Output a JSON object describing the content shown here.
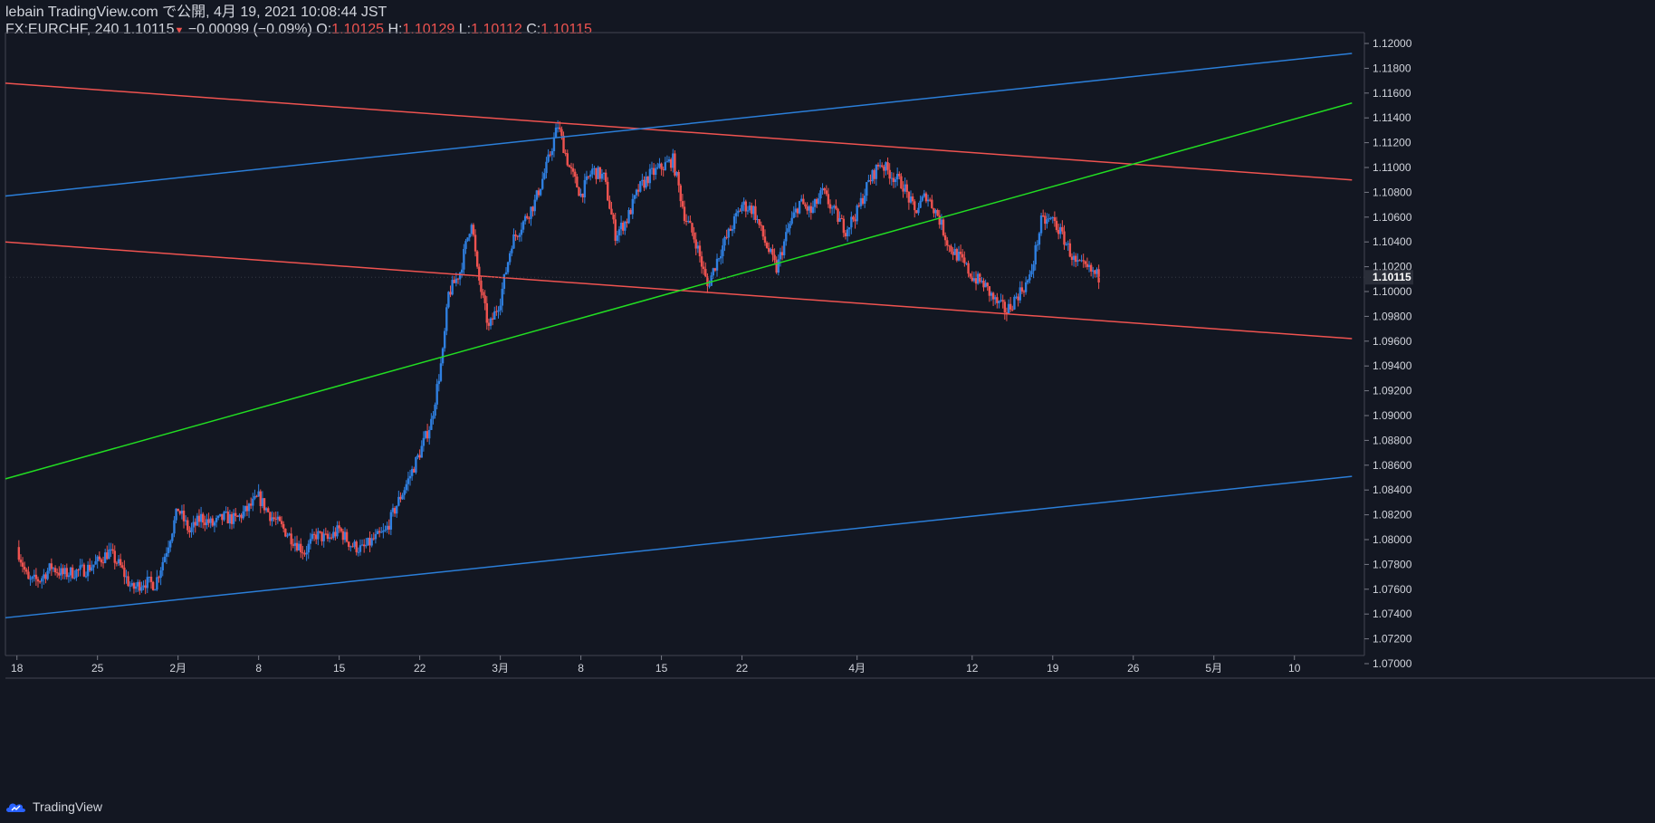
{
  "header": {
    "published": "lebain TradingView.com で公開, 4月 19, 2021 10:08:44 JST",
    "symbol": "FX:EURCHF, 240",
    "last": "1.10115",
    "change_arrow": "▼",
    "change": "−0.00099 (−0.09%)",
    "o_label": "O:",
    "o_value": "1.10125",
    "h_label": "H:",
    "h_value": "1.10129",
    "l_label": "L:",
    "l_value": "1.10112",
    "c_label": "C:",
    "c_value": "1.10115"
  },
  "footer": {
    "brand": "TradingView"
  },
  "colors": {
    "background": "#131722",
    "up": "#2f7fe0",
    "down": "#ef5350",
    "green_line": "#22dd22",
    "blue_line": "#2b7ed8",
    "red_line": "#ef5350",
    "axis_text": "#d1d4dc"
  },
  "chart_data": {
    "type": "candlestick",
    "title": "FX:EURCHF, 240",
    "ylim": [
      1.07,
      1.12
    ],
    "y_ticks": [
      1.07,
      1.072,
      1.074,
      1.076,
      1.078,
      1.08,
      1.082,
      1.084,
      1.086,
      1.088,
      1.09,
      1.092,
      1.094,
      1.096,
      1.098,
      1.1,
      1.102,
      1.104,
      1.106,
      1.108,
      1.11,
      1.112,
      1.114,
      1.116,
      1.118,
      1.12
    ],
    "y_tick_labels": [
      "1.07000",
      "1.07200",
      "1.07400",
      "1.07600",
      "1.07800",
      "1.08000",
      "1.08200",
      "1.08400",
      "1.08600",
      "1.08800",
      "1.09000",
      "1.09200",
      "1.09400",
      "1.09600",
      "1.09800",
      "1.10000",
      "1.10200",
      "1.10400",
      "1.10600",
      "1.10800",
      "1.11000",
      "1.11200",
      "1.11400",
      "1.11600",
      "1.11800",
      "1.12000"
    ],
    "current_price": 1.10115,
    "current_price_label": "1.10115",
    "x_axis": {
      "unit": "day",
      "labels": [
        {
          "text": "18",
          "x": 0
        },
        {
          "text": "25",
          "x": 7
        },
        {
          "text": "2月",
          "x": 14
        },
        {
          "text": "8",
          "x": 21
        },
        {
          "text": "15",
          "x": 28
        },
        {
          "text": "22",
          "x": 35
        },
        {
          "text": "3月",
          "x": 42
        },
        {
          "text": "8",
          "x": 49
        },
        {
          "text": "15",
          "x": 56
        },
        {
          "text": "22",
          "x": 63
        },
        {
          "text": "4月",
          "x": 73
        },
        {
          "text": "12",
          "x": 83
        },
        {
          "text": "19",
          "x": 90
        },
        {
          "text": "26",
          "x": 97
        },
        {
          "text": "5月",
          "x": 104
        },
        {
          "text": "10",
          "x": 111
        }
      ],
      "xlim": [
        -1,
        117
      ]
    },
    "price_path": [
      [
        0,
        1.0794
      ],
      [
        1,
        1.0766
      ],
      [
        2,
        1.0768
      ],
      [
        3,
        1.0778
      ],
      [
        4,
        1.0772
      ],
      [
        5,
        1.0774
      ],
      [
        6,
        1.0776
      ],
      [
        7,
        1.0782
      ],
      [
        8,
        1.079
      ],
      [
        9,
        1.0778
      ],
      [
        10,
        1.076
      ],
      [
        11,
        1.0766
      ],
      [
        12,
        1.0764
      ],
      [
        13,
        1.0792
      ],
      [
        14,
        1.0825
      ],
      [
        15,
        1.0806
      ],
      [
        16,
        1.0818
      ],
      [
        17,
        1.0812
      ],
      [
        18,
        1.0818
      ],
      [
        19,
        1.0816
      ],
      [
        20,
        1.0824
      ],
      [
        21,
        1.0834
      ],
      [
        22,
        1.082
      ],
      [
        23,
        1.081
      ],
      [
        24,
        1.08
      ],
      [
        25,
        1.079
      ],
      [
        26,
        1.0804
      ],
      [
        27,
        1.08
      ],
      [
        28,
        1.0808
      ],
      [
        29,
        1.0796
      ],
      [
        30,
        1.0792
      ],
      [
        31,
        1.08
      ],
      [
        32,
        1.0806
      ],
      [
        33,
        1.0828
      ],
      [
        34,
        1.0848
      ],
      [
        35,
        1.087
      ],
      [
        36,
        1.0895
      ],
      [
        37,
        1.095
      ],
      [
        37.5,
        1.0998
      ],
      [
        38.5,
        1.1016
      ],
      [
        39.5,
        1.1058
      ],
      [
        40,
        1.1016
      ],
      [
        41,
        1.097
      ],
      [
        42,
        1.0994
      ],
      [
        43,
        1.104
      ],
      [
        45,
        1.1072
      ],
      [
        46,
        1.11
      ],
      [
        47,
        1.1134
      ],
      [
        48,
        1.11
      ],
      [
        49,
        1.1078
      ],
      [
        50,
        1.1098
      ],
      [
        51,
        1.1092
      ],
      [
        52,
        1.1046
      ],
      [
        53,
        1.1058
      ],
      [
        54,
        1.1082
      ],
      [
        55,
        1.1094
      ],
      [
        56,
        1.11
      ],
      [
        57,
        1.1106
      ],
      [
        58,
        1.1062
      ],
      [
        59,
        1.104
      ],
      [
        60,
        1.1004
      ],
      [
        61,
        1.103
      ],
      [
        62,
        1.105
      ],
      [
        63,
        1.107
      ],
      [
        64,
        1.1066
      ],
      [
        65,
        1.104
      ],
      [
        66,
        1.1018
      ],
      [
        67,
        1.105
      ],
      [
        68,
        1.1072
      ],
      [
        69,
        1.1064
      ],
      [
        70,
        1.108
      ],
      [
        71,
        1.1064
      ],
      [
        72,
        1.105
      ],
      [
        73,
        1.1064
      ],
      [
        74,
        1.1088
      ],
      [
        75,
        1.1104
      ],
      [
        76,
        1.1094
      ],
      [
        77,
        1.1086
      ],
      [
        78,
        1.1064
      ],
      [
        79,
        1.1078
      ],
      [
        80,
        1.1062
      ],
      [
        81,
        1.1036
      ],
      [
        82,
        1.1026
      ],
      [
        83,
        1.1012
      ],
      [
        84,
        1.1006
      ],
      [
        85,
        1.0992
      ],
      [
        86,
        1.0984
      ],
      [
        87,
        1.0998
      ],
      [
        88,
        1.101
      ],
      [
        89,
        1.1056
      ],
      [
        90,
        1.1058
      ],
      [
        91,
        1.1042
      ],
      [
        92,
        1.1022
      ],
      [
        93,
        1.1018
      ],
      [
        94,
        1.1012
      ]
    ],
    "trend_lines": [
      {
        "color": "red",
        "from": [
          -1,
          1.1168
        ],
        "to": [
          116,
          1.109
        ]
      },
      {
        "color": "red",
        "from": [
          -1,
          1.104
        ],
        "to": [
          116,
          1.0962
        ]
      },
      {
        "color": "blue",
        "from": [
          -1,
          1.1077
        ],
        "to": [
          116,
          1.1192
        ]
      },
      {
        "color": "blue",
        "from": [
          -1,
          1.0737
        ],
        "to": [
          116,
          1.0851
        ]
      },
      {
        "color": "green",
        "from": [
          -1,
          1.0849
        ],
        "to": [
          116,
          1.1152
        ]
      }
    ]
  }
}
